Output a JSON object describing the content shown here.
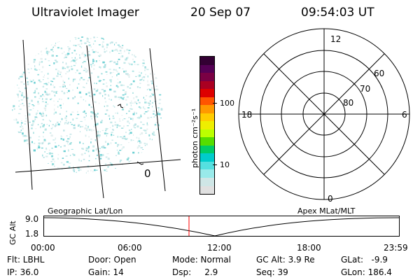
{
  "header": {
    "instrument": "Ultraviolet Imager",
    "date": "20 Sep 07",
    "time": "09:54:03 UT"
  },
  "colorbar": {
    "label": "photon cm⁻²s⁻¹",
    "ticks": [
      "100",
      "10"
    ],
    "colors": [
      "#330033",
      "#550055",
      "#7a0044",
      "#aa0022",
      "#dd0000",
      "#ff5500",
      "#ff9900",
      "#ffcc00",
      "#eeee00",
      "#bbff00",
      "#55dd00",
      "#00cc66",
      "#00cccc",
      "#55e0e0",
      "#99eaea",
      "#cfe6e6",
      "#e0e0e0"
    ]
  },
  "polar": {
    "mlt_labels": {
      "top": "12",
      "left": "18",
      "right": "6",
      "bottom": "0"
    },
    "lat_labels": [
      "60",
      "70",
      "80"
    ]
  },
  "orbit": {
    "left_title": "Geographic Lat/Lon",
    "right_title": "Apex MLat/MLT",
    "y_axis_title": "GC Alt",
    "y_ticks": [
      "9.0",
      "1.8"
    ],
    "x_ticks": [
      "00:00",
      "06:00",
      "12:00",
      "18:00",
      "23:59"
    ],
    "current_marker_color": "#ff0000"
  },
  "status": {
    "filter": "Flt: LBHL",
    "door": "Door: Open",
    "mode": "Mode: Normal",
    "gc_alt": "GC Alt: 3.9 Re",
    "glat": "GLat:   -9.9",
    "ip": "IP: 36.0",
    "gain": "Gain: 14",
    "dsp": "Dsp:     2.9",
    "seq": "Seq: 39",
    "glon": "GLon: 186.4"
  },
  "image": {
    "grid_label": "0"
  }
}
